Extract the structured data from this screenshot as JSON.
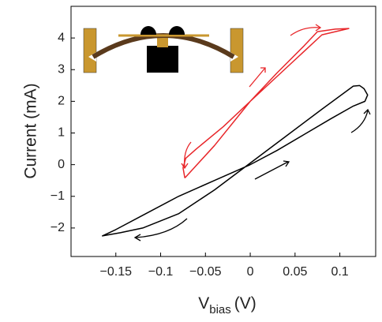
{
  "chart_data": {
    "type": "line",
    "xlabel": "V",
    "xlabel_subscript": "bias",
    "xlabel_unit": "(V)",
    "ylabel": "Current (mA)",
    "xlim": [
      -0.2,
      0.14
    ],
    "ylim": [
      -2.9,
      5
    ],
    "xticks": [
      {
        "value": -0.15,
        "label": "−0.15"
      },
      {
        "value": -0.1,
        "label": "−0.1"
      },
      {
        "value": -0.05,
        "label": "−0.05"
      },
      0,
      0.05,
      0.1
    ],
    "yticks": [
      {
        "value": -2,
        "label": "−2"
      },
      {
        "value": -1,
        "label": "−1"
      },
      0,
      1,
      2,
      3,
      4
    ],
    "series": [
      {
        "color": "#000000",
        "x": [
          0,
          0.03,
          0.06,
          0.09,
          0.115,
          0.128,
          0.131,
          0.127,
          0.122,
          0.115,
          0.08,
          0.04,
          0,
          -0.04,
          -0.08,
          -0.12,
          -0.145,
          -0.165,
          -0.15,
          -0.12,
          -0.08,
          -0.04,
          0
        ],
        "values": [
          0,
          0.45,
          0.95,
          1.45,
          1.85,
          2.0,
          2.2,
          2.4,
          2.5,
          2.48,
          1.75,
          0.9,
          0.05,
          -0.8,
          -1.55,
          -2.0,
          -2.15,
          -2.25,
          -2.05,
          -1.6,
          -1.0,
          -0.5,
          0
        ]
      },
      {
        "color": "#e8262a",
        "x": [
          -0.073,
          -0.04,
          0,
          0.04,
          0.08,
          0.11,
          0.095,
          0.075,
          0.06,
          0.03,
          0,
          -0.03,
          -0.06,
          -0.072,
          -0.075,
          -0.073
        ],
        "values": [
          -0.42,
          0.6,
          2.0,
          3.05,
          4.1,
          4.3,
          4.28,
          4.2,
          3.75,
          2.9,
          2.0,
          1.2,
          0.5,
          0.2,
          -0.1,
          -0.42
        ]
      }
    ]
  }
}
